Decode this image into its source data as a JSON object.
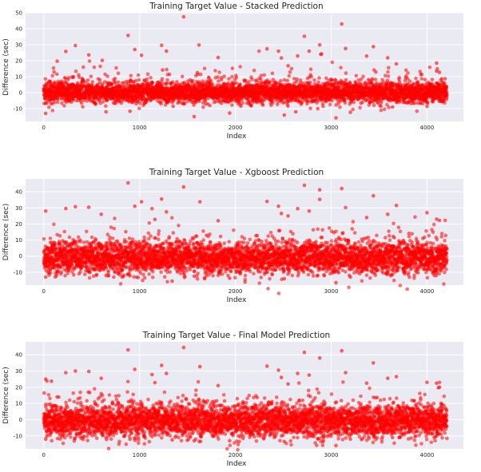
{
  "chart_data": [
    {
      "type": "scatter",
      "title": "Training Target Value - Stacked Prediction",
      "xlabel": "Index",
      "ylabel": "Difference (sec)",
      "xlim": [
        -190,
        4380
      ],
      "ylim": [
        -18,
        50
      ],
      "xticks": [
        0,
        1000,
        2000,
        3000,
        4000
      ],
      "yticks": [
        -10,
        0,
        10,
        20,
        30,
        40,
        50
      ],
      "n_points": 4209,
      "grid": true,
      "marker_color": "#ff0000",
      "background": "#eaeaf2",
      "series": [
        {
          "points": [
            [
              1460,
              47.5
            ],
            [
              3110,
              43
            ],
            [
              880,
              35.8
            ],
            [
              2720,
              35.3
            ],
            [
              330,
              29.5
            ],
            [
              1620,
              29.8
            ],
            [
              3440,
              28.8
            ],
            [
              1230,
              29.6
            ],
            [
              2880,
              29.9
            ],
            [
              3150,
              27.6
            ],
            [
              950,
              27
            ],
            [
              2330,
              27.4
            ],
            [
              2450,
              26
            ],
            [
              230,
              25.8
            ],
            [
              1280,
              26
            ],
            [
              2770,
              26
            ],
            [
              470,
              23.6
            ],
            [
              1020,
              23.4
            ],
            [
              2650,
              23
            ],
            [
              2900,
              24.2
            ],
            [
              3370,
              22.9
            ],
            [
              2480,
              21.7
            ],
            [
              4100,
              18.5
            ],
            [
              3680,
              18
            ],
            [
              3590,
              21.8
            ],
            [
              1820,
              22
            ],
            [
              610,
              20.2
            ],
            [
              140,
              19.7
            ],
            [
              2550,
              16.8
            ],
            [
              1240,
              14.2
            ],
            [
              4100,
              13.5
            ],
            [
              4130,
              12.7
            ],
            [
              20,
              -13
            ],
            [
              1570,
              -15
            ],
            [
              2510,
              -14
            ],
            [
              1940,
              -12.8
            ],
            [
              2630,
              -12
            ],
            [
              3050,
              -15.8
            ],
            [
              3200,
              -12.3
            ],
            [
              900,
              -11.6
            ],
            [
              3640,
              -9
            ],
            [
              2860,
              -10
            ],
            [
              650,
              -12
            ],
            [
              1350,
              -8.5
            ],
            [
              2050,
              -7.5
            ],
            [
              4000,
              -8.5
            ]
          ]
        }
      ]
    },
    {
      "type": "scatter",
      "title": "Training Target Value - Xgboost Prediction",
      "xlabel": "Index",
      "ylabel": "Difference (sec)",
      "xlim": [
        -190,
        4380
      ],
      "ylim": [
        -18,
        48
      ],
      "xticks": [
        0,
        1000,
        2000,
        3000,
        4000
      ],
      "yticks": [
        -10,
        0,
        10,
        20,
        30,
        40
      ],
      "n_points": 4209,
      "grid": true,
      "marker_color": "#ff0000",
      "background": "#eaeaf2",
      "series": [
        {
          "points": [
            [
              880,
              45.5
            ],
            [
              2720,
              44
            ],
            [
              1460,
              43
            ],
            [
              3110,
              42
            ],
            [
              2880,
              41.2
            ],
            [
              3440,
              37.5
            ],
            [
              1230,
              35.5
            ],
            [
              1630,
              33.8
            ],
            [
              2330,
              34
            ],
            [
              2880,
              35.3
            ],
            [
              1020,
              33.8
            ],
            [
              950,
              31
            ],
            [
              2450,
              31
            ],
            [
              470,
              30.4
            ],
            [
              330,
              30.7
            ],
            [
              3150,
              30.2
            ],
            [
              230,
              29.6
            ],
            [
              3680,
              31.5
            ],
            [
              2650,
              29.5
            ],
            [
              4000,
              27
            ],
            [
              1130,
              29.5
            ],
            [
              1280,
              27.5
            ],
            [
              2770,
              28
            ],
            [
              2480,
              26.5
            ],
            [
              20,
              28
            ],
            [
              600,
              26
            ],
            [
              3590,
              26
            ],
            [
              4100,
              23
            ],
            [
              4130,
              22.2
            ],
            [
              1820,
              22
            ],
            [
              2550,
              25
            ],
            [
              3370,
              24
            ],
            [
              1160,
              22.8
            ],
            [
              3050,
              -16.5
            ],
            [
              1340,
              -15.5
            ],
            [
              20,
              -13
            ],
            [
              1570,
              -12.5
            ],
            [
              2510,
              -14
            ],
            [
              3200,
              -13
            ],
            [
              900,
              -12.2
            ],
            [
              1940,
              -13.7
            ],
            [
              2860,
              -12
            ],
            [
              2050,
              -11
            ],
            [
              4100,
              -10.5
            ],
            [
              3640,
              -11.5
            ],
            [
              650,
              -12
            ]
          ]
        }
      ]
    },
    {
      "type": "scatter",
      "title": "Training Target Value - Final Model Prediction",
      "xlabel": "Index",
      "ylabel": "Difference (sec)",
      "xlim": [
        -190,
        4380
      ],
      "ylim": [
        -18,
        48
      ],
      "xticks": [
        0,
        1000,
        2000,
        3000,
        4000
      ],
      "yticks": [
        -10,
        0,
        10,
        20,
        30,
        40
      ],
      "n_points": 4209,
      "grid": true,
      "marker_color": "#ff0000",
      "background": "#eaeaf2",
      "series": [
        {
          "points": [
            [
              1460,
              44.5
            ],
            [
              880,
              43
            ],
            [
              3110,
              42.5
            ],
            [
              2720,
              41.5
            ],
            [
              2880,
              38
            ],
            [
              3440,
              35
            ],
            [
              1230,
              33.5
            ],
            [
              1630,
              32.7
            ],
            [
              2330,
              33
            ],
            [
              950,
              31
            ],
            [
              2450,
              30.5
            ],
            [
              470,
              29.7
            ],
            [
              330,
              30
            ],
            [
              3150,
              29
            ],
            [
              230,
              29
            ],
            [
              3680,
              26.5
            ],
            [
              2650,
              28.5
            ],
            [
              4000,
              23
            ],
            [
              1130,
              27.8
            ],
            [
              1280,
              28.5
            ],
            [
              2770,
              27.5
            ],
            [
              2480,
              26
            ],
            [
              20,
              25
            ],
            [
              600,
              25.5
            ],
            [
              3590,
              25.5
            ],
            [
              4100,
              22.5
            ],
            [
              4130,
              20
            ],
            [
              1820,
              21
            ],
            [
              2550,
              22
            ],
            [
              3370,
              22.5
            ],
            [
              80,
              23.7
            ],
            [
              1160,
              22.8
            ],
            [
              3050,
              -16
            ],
            [
              1340,
              -12.5
            ],
            [
              20,
              -12
            ],
            [
              1570,
              -13
            ],
            [
              2510,
              -13.5
            ],
            [
              3200,
              -12
            ],
            [
              900,
              -12
            ],
            [
              1940,
              -13
            ],
            [
              2860,
              -11.8
            ],
            [
              2050,
              -10.5
            ],
            [
              4100,
              -10
            ],
            [
              3640,
              -11
            ],
            [
              650,
              -11
            ]
          ]
        }
      ]
    }
  ]
}
